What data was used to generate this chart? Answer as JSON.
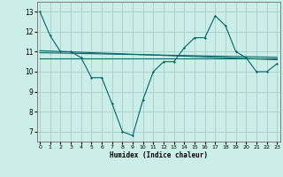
{
  "x": [
    0,
    1,
    2,
    3,
    4,
    5,
    6,
    7,
    8,
    9,
    10,
    11,
    12,
    13,
    14,
    15,
    16,
    17,
    18,
    19,
    20,
    21,
    22,
    23
  ],
  "y_main": [
    13.0,
    11.8,
    11.0,
    11.0,
    10.7,
    9.7,
    9.7,
    8.4,
    7.0,
    6.8,
    8.6,
    10.0,
    10.5,
    10.5,
    11.2,
    11.7,
    11.7,
    12.8,
    12.3,
    11.0,
    10.7,
    10.0,
    10.0,
    10.4
  ],
  "line1_x": [
    0,
    23
  ],
  "line1_y": [
    10.65,
    10.65
  ],
  "line2_x": [
    0,
    23
  ],
  "line2_y": [
    10.95,
    10.72
  ],
  "line3_x": [
    0,
    23
  ],
  "line3_y": [
    11.05,
    10.6
  ],
  "xlim": [
    -0.3,
    23.3
  ],
  "ylim": [
    6.5,
    13.5
  ],
  "yticks": [
    7,
    8,
    9,
    10,
    11,
    12,
    13
  ],
  "xticks": [
    0,
    1,
    2,
    3,
    4,
    5,
    6,
    7,
    8,
    9,
    10,
    11,
    12,
    13,
    14,
    15,
    16,
    17,
    18,
    19,
    20,
    21,
    22,
    23
  ],
  "xlabel": "Humidex (Indice chaleur)",
  "line_color": "#006666",
  "bg_color": "#cceee8",
  "grid_color": "#aacccc"
}
